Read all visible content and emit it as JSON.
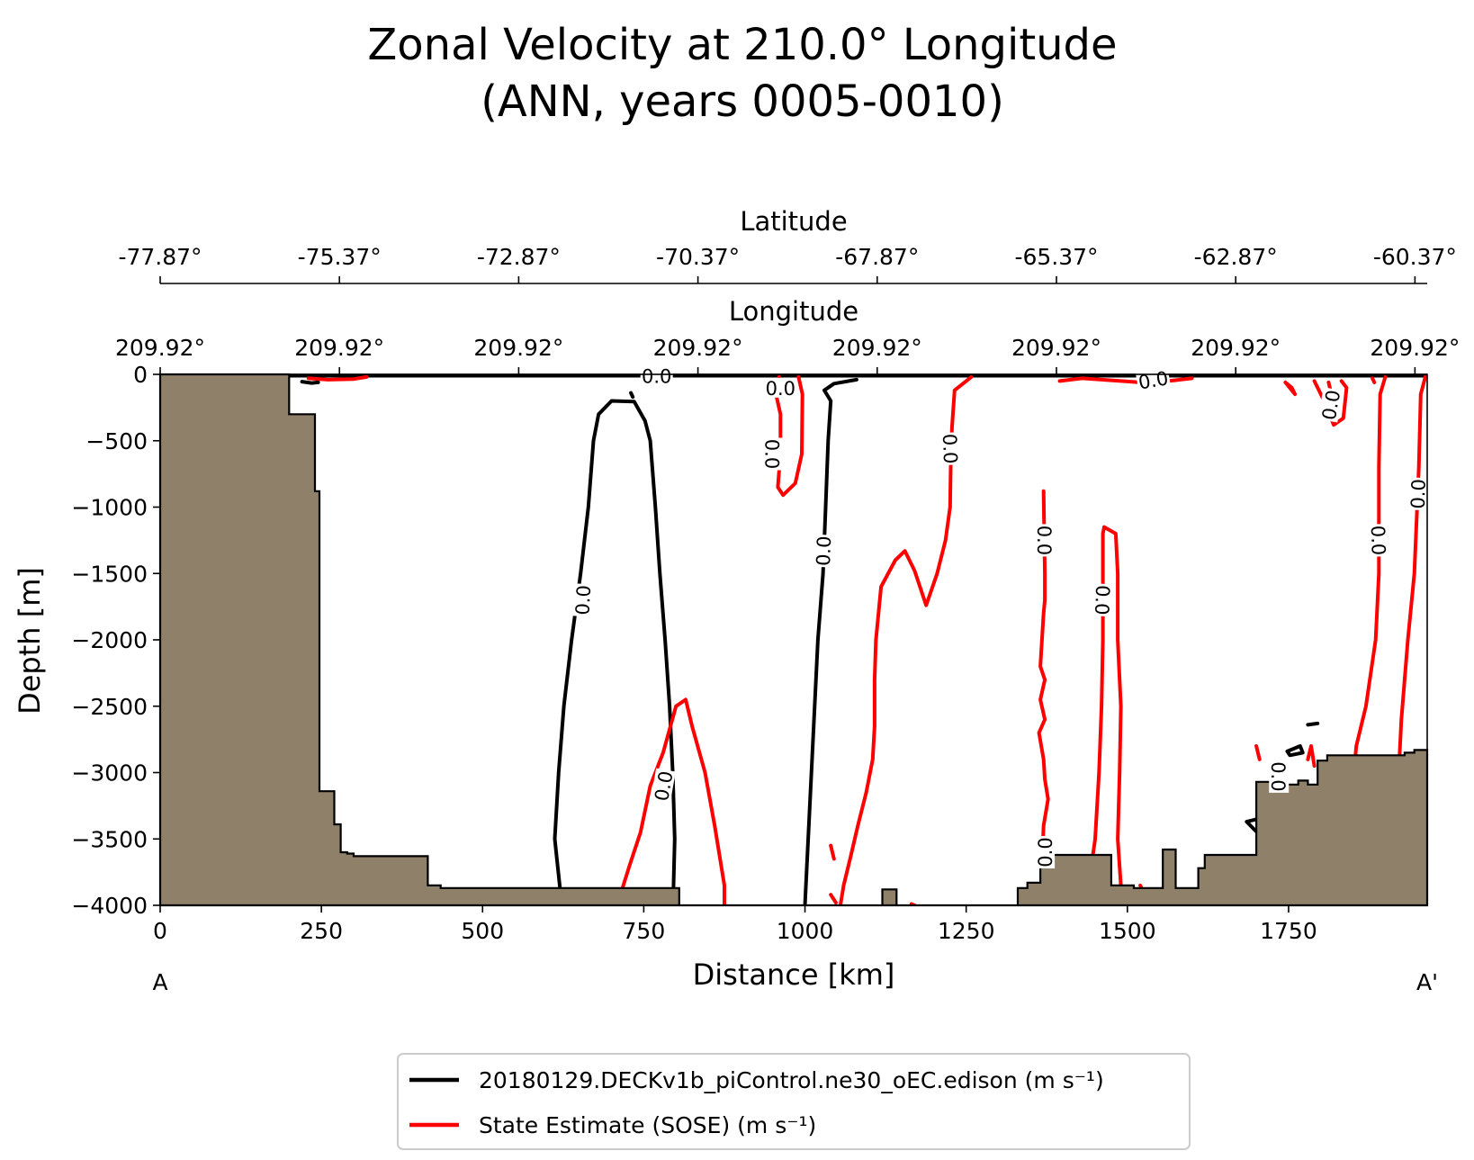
{
  "chart_data": {
    "type": "contour-section",
    "title_line1": "Zonal Velocity at 210.0° Longitude",
    "title_line2": "(ANN, years 0005-0010)",
    "xlabel": "Distance [km]",
    "ylabel": "Depth [m]",
    "xlim": [
      0,
      1965
    ],
    "ylim": [
      -4000,
      0
    ],
    "x_ticks": [
      0,
      250,
      500,
      750,
      1000,
      1250,
      1500,
      1750
    ],
    "y_ticks": [
      0,
      -500,
      -1000,
      -1500,
      -2000,
      -2500,
      -3000,
      -3500,
      -4000
    ],
    "y_tick_labels": [
      "0",
      "−500",
      "−1000",
      "−1500",
      "−2000",
      "−2500",
      "−3000",
      "−3500",
      "−4000"
    ],
    "latitude_axis": {
      "label": "Latitude",
      "positions_km": [
        0,
        278,
        556,
        834,
        1112,
        1390,
        1668,
        1946
      ],
      "tick_labels": [
        "-77.87°",
        "-75.37°",
        "-72.87°",
        "-70.37°",
        "-67.87°",
        "-65.37°",
        "-62.87°",
        "-60.37°"
      ]
    },
    "longitude_axis": {
      "label": "Longitude",
      "positions_km": [
        0,
        278,
        556,
        834,
        1112,
        1390,
        1668,
        1946
      ],
      "tick_labels": [
        "209.92°",
        "209.92°",
        "209.92°",
        "209.92°",
        "209.92°",
        "209.92°",
        "209.92°",
        "209.92°"
      ]
    },
    "endpoint_labels": [
      "A",
      "A'"
    ],
    "contour_level": "0.0",
    "bathymetry_color": "#8f8069",
    "bathymetry": [
      [
        0,
        0
      ],
      [
        200,
        0
      ],
      [
        200,
        -300
      ],
      [
        240,
        -300
      ],
      [
        240,
        -880
      ],
      [
        247,
        -880
      ],
      [
        247,
        -3140
      ],
      [
        270,
        -3140
      ],
      [
        270,
        -3390
      ],
      [
        280,
        -3390
      ],
      [
        280,
        -3600
      ],
      [
        290,
        -3600
      ],
      [
        290,
        -3610
      ],
      [
        300,
        -3610
      ],
      [
        300,
        -3630
      ],
      [
        415,
        -3630
      ],
      [
        415,
        -3850
      ],
      [
        435,
        -3850
      ],
      [
        435,
        -3870
      ],
      [
        805,
        -3870
      ],
      [
        805,
        -4000
      ],
      [
        1120,
        -4000
      ],
      [
        1120,
        -3880
      ],
      [
        1142,
        -3880
      ],
      [
        1142,
        -4000
      ],
      [
        1330,
        -4000
      ],
      [
        1330,
        -3870
      ],
      [
        1345,
        -3870
      ],
      [
        1345,
        -3830
      ],
      [
        1365,
        -3830
      ],
      [
        1365,
        -3620
      ],
      [
        1475,
        -3620
      ],
      [
        1475,
        -3850
      ],
      [
        1510,
        -3850
      ],
      [
        1510,
        -3870
      ],
      [
        1555,
        -3870
      ],
      [
        1555,
        -3580
      ],
      [
        1575,
        -3580
      ],
      [
        1575,
        -3870
      ],
      [
        1610,
        -3870
      ],
      [
        1610,
        -3720
      ],
      [
        1620,
        -3720
      ],
      [
        1620,
        -3620
      ],
      [
        1700,
        -3620
      ],
      [
        1700,
        -3070
      ],
      [
        1735,
        -3070
      ],
      [
        1735,
        -3090
      ],
      [
        1765,
        -3090
      ],
      [
        1765,
        -3060
      ],
      [
        1780,
        -3060
      ],
      [
        1780,
        -3090
      ],
      [
        1795,
        -3090
      ],
      [
        1795,
        -2910
      ],
      [
        1810,
        -2910
      ],
      [
        1810,
        -2870
      ],
      [
        1930,
        -2870
      ],
      [
        1930,
        -2850
      ],
      [
        1945,
        -2850
      ],
      [
        1945,
        -2830
      ],
      [
        1965,
        -2830
      ],
      [
        1965,
        -4000
      ],
      [
        0,
        -4000
      ]
    ],
    "series": [
      {
        "name": "20180129.DECKv1b_piControl.ne30_oEC.edison",
        "units": "m s⁻¹",
        "color": "#000000",
        "contours": [
          [
            [
              0,
              -10
            ],
            [
              1965,
              -10
            ]
          ],
          [
            [
              620,
              -3870
            ],
            [
              612,
              -3500
            ],
            [
              618,
              -3000
            ],
            [
              626,
              -2500
            ],
            [
              638,
              -2000
            ],
            [
              652,
              -1500
            ],
            [
              664,
              -1000
            ],
            [
              672,
              -500
            ],
            [
              680,
              -300
            ],
            [
              700,
              -200
            ],
            [
              735,
              -205
            ],
            [
              752,
              -350
            ],
            [
              760,
              -500
            ],
            [
              768,
              -1000
            ],
            [
              775,
              -1500
            ],
            [
              783,
              -2000
            ],
            [
              790,
              -2500
            ],
            [
              795,
              -3000
            ],
            [
              798,
              -3500
            ],
            [
              796,
              -3870
            ]
          ],
          [
            [
              730,
              -140
            ],
            [
              733,
              -170
            ]
          ],
          [
            [
              220,
              -55
            ],
            [
              235,
              -65
            ],
            [
              245,
              -60
            ]
          ],
          [
            [
              1000,
              -4000
            ],
            [
              1005,
              -3500
            ],
            [
              1010,
              -3000
            ],
            [
              1015,
              -2500
            ],
            [
              1020,
              -2000
            ],
            [
              1028,
              -1500
            ],
            [
              1032,
              -1000
            ],
            [
              1036,
              -500
            ],
            [
              1040,
              -200
            ],
            [
              1030,
              -120
            ],
            [
              1045,
              -70
            ],
            [
              1080,
              -40
            ]
          ],
          [
            [
              1685,
              -3370
            ],
            [
              1710,
              -3340
            ],
            [
              1730,
              -3320
            ],
            [
              1730,
              -3470
            ],
            [
              1705,
              -3470
            ],
            [
              1685,
              -3370
            ]
          ],
          [
            [
              1748,
              -2840
            ],
            [
              1768,
              -2800
            ],
            [
              1772,
              -2850
            ],
            [
              1752,
              -2870
            ],
            [
              1748,
              -2840
            ]
          ],
          [
            [
              1780,
              -2640
            ],
            [
              1795,
              -2630
            ]
          ]
        ]
      },
      {
        "name": "State Estimate (SOSE)",
        "units": "m s⁻¹",
        "color": "#ff0000",
        "contours": [
          [
            [
              230,
              -30
            ],
            [
              260,
              -40
            ],
            [
              300,
              -35
            ],
            [
              320,
              -20
            ]
          ],
          [
            [
              470,
              -4000
            ],
            [
              505,
              -3960
            ],
            [
              520,
              -3990
            ]
          ],
          [
            [
              710,
              -3980
            ],
            [
              728,
              -3700
            ],
            [
              745,
              -3450
            ],
            [
              760,
              -3100
            ],
            [
              780,
              -2850
            ],
            [
              800,
              -2500
            ],
            [
              815,
              -2450
            ],
            [
              825,
              -2650
            ],
            [
              845,
              -3000
            ],
            [
              860,
              -3400
            ],
            [
              870,
              -3700
            ],
            [
              875,
              -3850
            ],
            [
              875,
              -4000
            ]
          ],
          [
            [
              960,
              -20
            ],
            [
              955,
              -150
            ],
            [
              962,
              -300
            ],
            [
              962,
              -600
            ],
            [
              958,
              -850
            ],
            [
              966,
              -910
            ],
            [
              985,
              -820
            ],
            [
              995,
              -600
            ],
            [
              996,
              -150
            ],
            [
              990,
              -20
            ]
          ],
          [
            [
              1040,
              -3550
            ],
            [
              1045,
              -3650
            ]
          ],
          [
            [
              1040,
              -3920
            ],
            [
              1048,
              -3980
            ]
          ],
          [
            [
              1055,
              -4000
            ],
            [
              1060,
              -3850
            ],
            [
              1070,
              -3650
            ],
            [
              1082,
              -3400
            ],
            [
              1095,
              -3150
            ],
            [
              1105,
              -2900
            ],
            [
              1108,
              -2650
            ],
            [
              1108,
              -2300
            ],
            [
              1110,
              -2000
            ],
            [
              1118,
              -1600
            ],
            [
              1140,
              -1400
            ],
            [
              1155,
              -1330
            ],
            [
              1170,
              -1480
            ],
            [
              1188,
              -1740
            ],
            [
              1205,
              -1500
            ],
            [
              1218,
              -1250
            ],
            [
              1225,
              -1000
            ],
            [
              1226,
              -700
            ],
            [
              1228,
              -400
            ],
            [
              1232,
              -120
            ],
            [
              1258,
              -20
            ]
          ],
          [
            [
              1370,
              -880
            ],
            [
              1372,
              -1500
            ],
            [
              1372,
              -1700
            ],
            [
              1370,
              -1800
            ],
            [
              1365,
              -2200
            ],
            [
              1372,
              -2300
            ],
            [
              1365,
              -2450
            ],
            [
              1372,
              -2600
            ],
            [
              1363,
              -2700
            ],
            [
              1370,
              -2900
            ],
            [
              1372,
              -3050
            ],
            [
              1377,
              -3200
            ],
            [
              1370,
              -3400
            ],
            [
              1368,
              -3650
            ],
            [
              1372,
              -3870
            ],
            [
              1380,
              -4000
            ]
          ],
          [
            [
              1440,
              -3850
            ],
            [
              1450,
              -3500
            ],
            [
              1456,
              -3000
            ],
            [
              1460,
              -2500
            ],
            [
              1462,
              -2000
            ],
            [
              1462,
              -1200
            ],
            [
              1464,
              -1150
            ],
            [
              1482,
              -1200
            ],
            [
              1485,
              -1500
            ],
            [
              1485,
              -2000
            ],
            [
              1490,
              -2500
            ],
            [
              1488,
              -3000
            ],
            [
              1485,
              -3500
            ],
            [
              1492,
              -4000
            ]
          ],
          [
            [
              1395,
              -50
            ],
            [
              1430,
              -30
            ],
            [
              1460,
              -40
            ],
            [
              1490,
              -50
            ],
            [
              1520,
              -60
            ],
            [
              1555,
              -55
            ],
            [
              1600,
              -30
            ]
          ],
          [
            [
              1745,
              -60
            ],
            [
              1760,
              -150
            ],
            [
              1755,
              -100
            ],
            [
              1745,
              -60
            ]
          ],
          [
            [
              1790,
              -50
            ],
            [
              1805,
              -200
            ],
            [
              1820,
              -380
            ],
            [
              1835,
              -330
            ],
            [
              1840,
              -100
            ],
            [
              1832,
              -50
            ]
          ],
          [
            [
              1812,
              -60
            ],
            [
              1815,
              -120
            ]
          ],
          [
            [
              1880,
              -30
            ],
            [
              1883,
              -60
            ]
          ],
          [
            [
              1850,
              -3070
            ],
            [
              1855,
              -2800
            ],
            [
              1870,
              -2500
            ],
            [
              1885,
              -2000
            ],
            [
              1890,
              -1500
            ],
            [
              1890,
              -700
            ],
            [
              1892,
              -150
            ],
            [
              1900,
              -20
            ]
          ],
          [
            [
              1920,
              -3070
            ],
            [
              1925,
              -2600
            ],
            [
              1935,
              -2000
            ],
            [
              1945,
              -1500
            ],
            [
              1952,
              -700
            ],
            [
              1955,
              -150
            ],
            [
              1962,
              -20
            ]
          ],
          [
            [
              1700,
              -2800
            ],
            [
              1705,
              -2900
            ]
          ],
          [
            [
              1730,
              -3200
            ],
            [
              1735,
              -3300
            ]
          ],
          [
            [
              1780,
              -2900
            ],
            [
              1785,
              -2800
            ],
            [
              1790,
              -2950
            ]
          ],
          [
            [
              1520,
              -3850
            ],
            [
              1525,
              -3900
            ]
          ],
          [
            [
              1165,
              -3990
            ],
            [
              1170,
              -4000
            ]
          ]
        ]
      }
    ],
    "contour_labels": [
      {
        "text": "0.0",
        "x": 655,
        "y": -1700,
        "angle": -87,
        "series": 0
      },
      {
        "text": "0.0",
        "x": 1028,
        "y": -1330,
        "angle": -88,
        "series": 0
      },
      {
        "text": "0.0",
        "x": 770,
        "y": -10,
        "angle": 0,
        "series": 0
      },
      {
        "text": "0.0",
        "x": 950,
        "y": -600,
        "angle": 90,
        "series": 1
      },
      {
        "text": "0.0",
        "x": 962,
        "y": -100,
        "angle": 0,
        "series": 1
      },
      {
        "text": "0.0",
        "x": 1226,
        "y": -560,
        "angle": 88,
        "series": 1
      },
      {
        "text": "0.0",
        "x": 1372,
        "y": -1250,
        "angle": 90,
        "series": 1
      },
      {
        "text": "0.0",
        "x": 1462,
        "y": -1700,
        "angle": 92,
        "series": 1
      },
      {
        "text": "0.0",
        "x": 1372,
        "y": -3600,
        "angle": -90,
        "series": 1
      },
      {
        "text": "0.0",
        "x": 1540,
        "y": -40,
        "angle": -10,
        "series": 1
      },
      {
        "text": "0.0",
        "x": 1815,
        "y": -230,
        "angle": -80,
        "series": 1
      },
      {
        "text": "0.0",
        "x": 1890,
        "y": -1250,
        "angle": 88,
        "series": 1
      },
      {
        "text": "0.0",
        "x": 1950,
        "y": -900,
        "angle": -88,
        "series": 1
      },
      {
        "text": "0.0",
        "x": 780,
        "y": -3100,
        "angle": -80,
        "series": 1
      },
      {
        "text": "0.0",
        "x": 1735,
        "y": -3030,
        "angle": 90,
        "series": 1
      }
    ]
  }
}
